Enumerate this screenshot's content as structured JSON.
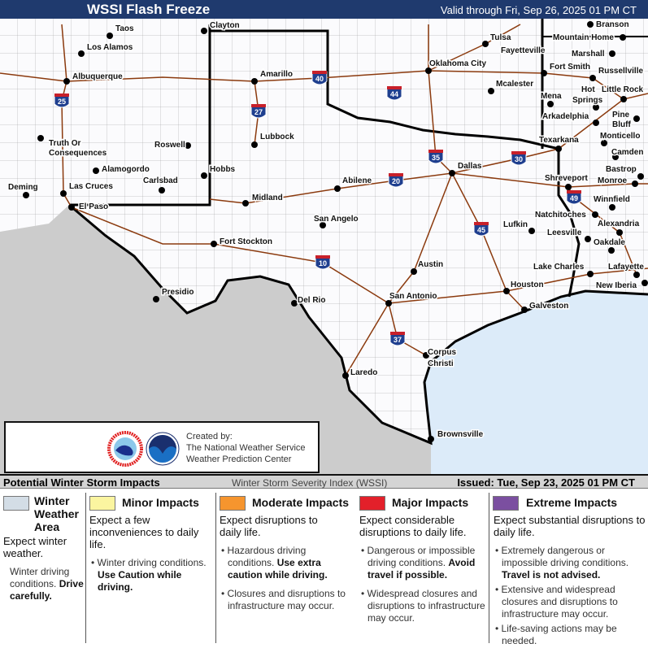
{
  "header": {
    "title": "WSSI Flash Freeze",
    "valid": "Valid through Fri, Sep 26, 2025 01 PM CT"
  },
  "map": {
    "colors": {
      "land": "#fbfbfd",
      "mexico": "#cccccc",
      "water": "#dcebf9",
      "border": "#000000",
      "highway": "#8b3a0e",
      "county": "#888888"
    },
    "cities": [
      "Taos",
      "Los Alamos",
      "Clayton",
      "Albuquerque",
      "Amarillo",
      "Tulsa",
      "Fayetteville",
      "Oklahoma City",
      "Branson",
      "Mountain Home",
      "Marshall",
      "Fort Smith",
      "Russellville",
      "Mcalester",
      "Mena",
      "Hot",
      "Springs",
      "Little Rock",
      "Arkadelphia",
      "Pine",
      "Bluff",
      "Monticello",
      "Camden",
      "Texarkana",
      "Lubbock",
      "Roswell",
      "Truth Or",
      "Consequences",
      "Alamogordo",
      "Carlsbad",
      "Hobbs",
      "Deming",
      "Las Cruces",
      "El Paso",
      "Midland",
      "Abilene",
      "Dallas",
      "Shreveport",
      "Bastrop",
      "Monroe",
      "Winnfield",
      "Natchitoches",
      "Alexandria",
      "San Angelo",
      "Lufkin",
      "Leesville",
      "Oakdale",
      "Fort Stockton",
      "Lake Charles",
      "Lafayette",
      "Austin",
      "Houston",
      "New Iberia",
      "Galveston",
      "Presidio",
      "Del Rio",
      "San Antonio",
      "Corpus",
      "Christi",
      "Laredo",
      "Brownsville"
    ],
    "interstates": [
      "25",
      "40",
      "27",
      "44",
      "35",
      "30",
      "20",
      "45",
      "10",
      "37",
      "49"
    ]
  },
  "credit": {
    "line1": "Created by:",
    "line2": "The National Weather Service",
    "line3": "Weather Prediction Center",
    "logos": [
      "nws-logo",
      "noaa-logo"
    ]
  },
  "bar": {
    "left": "Potential Winter Storm Impacts",
    "mid": "Winter Storm Severity Index (WSSI)",
    "right": "Issued: Tue, Sep 23, 2025 01 PM CT"
  },
  "legend": [
    {
      "label": "Winter Weather Area",
      "color": "#d3dde6",
      "desc": "Expect winter weather.",
      "b1a": "Winter driving conditions.",
      "b1b": "Drive carefully."
    },
    {
      "label": "Minor Impacts",
      "color": "#fbf5a0",
      "desc": "Expect a few inconveniences to daily life.",
      "b1a": "Winter driving conditions.",
      "b1b": "Use Caution while driving."
    },
    {
      "label": "Moderate Impacts",
      "color": "#f6952e",
      "desc": "Expect disruptions to daily life.",
      "b1a": "Hazardous driving conditions.",
      "b1b": "Use extra caution while driving.",
      "b2": "Closures and disruptions to infrastructure may occur."
    },
    {
      "label": "Major Impacts",
      "color": "#e3202a",
      "desc": "Expect considerable disruptions to daily life.",
      "b1a": "Dangerous or impossible driving conditions.",
      "b1b": "Avoid travel if possible.",
      "b2": "Widespread closures and disruptions to infrastructure may occur."
    },
    {
      "label": "Extreme Impacts",
      "color": "#7b4fa0",
      "desc": "Expect substantial disruptions to daily life.",
      "b1a": "Extremely dangerous or impossible driving conditions.",
      "b1b": "Travel is not advised.",
      "b2": "Extensive and widespread closures and disruptions to infrastructure may occur.",
      "b3": "Life-saving actions may be needed."
    }
  ]
}
